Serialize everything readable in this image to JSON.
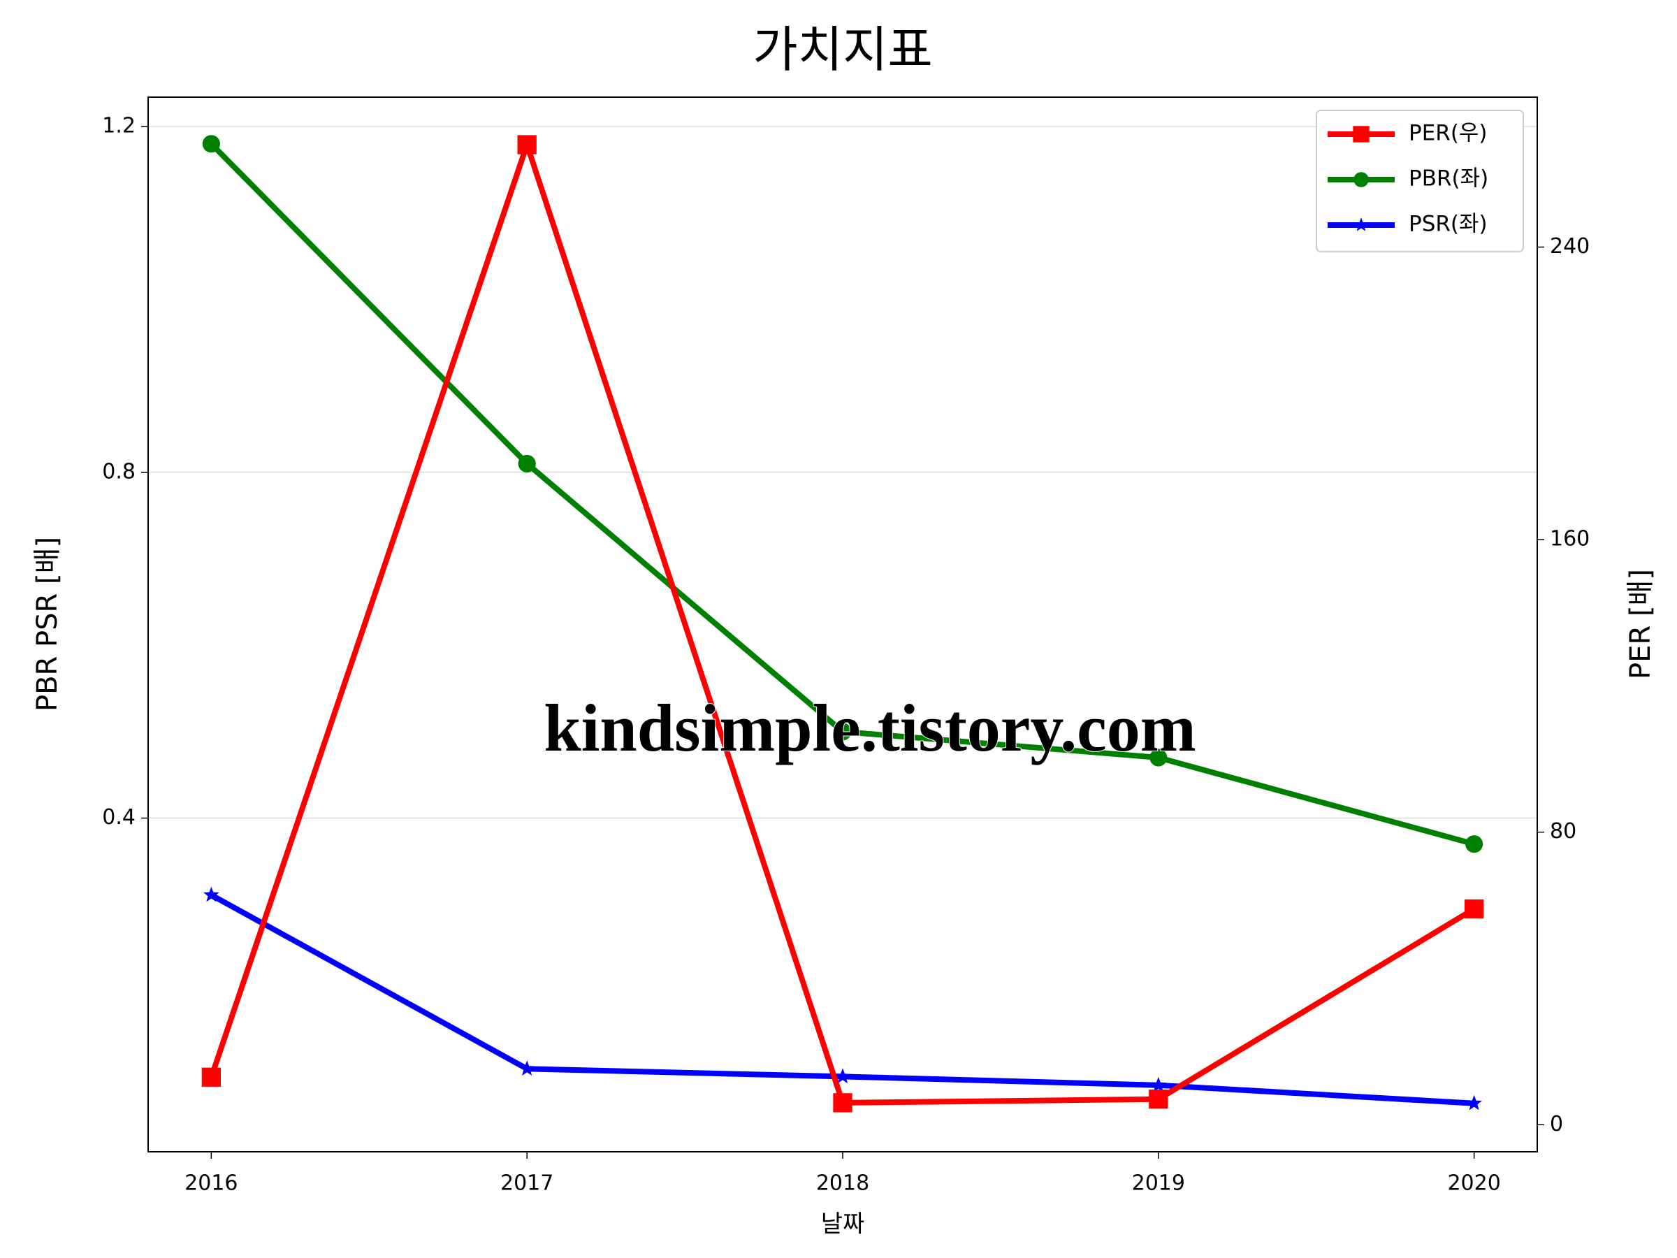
{
  "chart_data": {
    "type": "line",
    "title": "가치지표",
    "x_label": "날짜",
    "y_label": "PBR PSR [배]",
    "y2_label": "PER [배]",
    "watermark": "kindsimple.tistory.com",
    "x": [
      2016,
      2017,
      2018,
      2019,
      2020
    ],
    "xlim": [
      2015.8,
      2020.2
    ],
    "xticks": [
      2016,
      2017,
      2018,
      2019,
      2020
    ],
    "ylim": [
      0.014,
      1.234
    ],
    "yticks": [
      0.4,
      0.8,
      1.2
    ],
    "y2lim": [
      -7.4,
      281
    ],
    "y2ticks": [
      0,
      80,
      160,
      240
    ],
    "grid": true,
    "legend": "upper right",
    "y_label_color": "#008000",
    "y2_label_color": "#ff0000",
    "series": [
      {
        "name": "PER(우)",
        "color": "#ff0000",
        "marker": "square",
        "axis": "y2",
        "values": [
          13,
          268,
          6,
          7,
          59
        ]
      },
      {
        "name": "PBR(좌)",
        "color": "#008000",
        "marker": "circle",
        "values": [
          1.18,
          0.81,
          0.5,
          0.47,
          0.37
        ]
      },
      {
        "name": "PSR(좌)",
        "color": "#0000ff",
        "marker": "star",
        "values": [
          0.311,
          0.11,
          0.101,
          0.091,
          0.07
        ]
      }
    ]
  }
}
